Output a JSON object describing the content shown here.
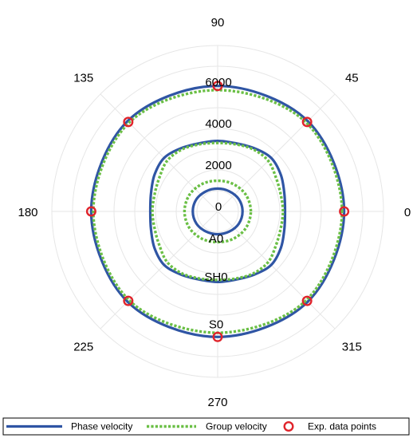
{
  "chart_data": {
    "type": "polar",
    "angle_ticks": [
      {
        "angle": 0,
        "label": "0"
      },
      {
        "angle": 45,
        "label": "45"
      },
      {
        "angle": 90,
        "label": "90"
      },
      {
        "angle": 135,
        "label": "135"
      },
      {
        "angle": 180,
        "label": "180"
      },
      {
        "angle": 225,
        "label": "225"
      },
      {
        "angle": 270,
        "label": "270"
      },
      {
        "angle": 315,
        "label": "315"
      }
    ],
    "radial_ticks": [
      {
        "value": 0,
        "label": "0"
      },
      {
        "value": 2000,
        "label": "2000"
      },
      {
        "value": 4000,
        "label": "4000"
      },
      {
        "value": 6000,
        "label": "6000"
      }
    ],
    "rlim": [
      0,
      8000
    ],
    "grid": true,
    "legend_position": "bottom",
    "mode_labels": [
      {
        "label": "A0",
        "angle": 270,
        "r": 1300
      },
      {
        "label": "SH0",
        "angle": 270,
        "r": 3150
      },
      {
        "label": "S0",
        "angle": 270,
        "r": 5450
      }
    ],
    "series": [
      {
        "name": "Phase velocity",
        "color": "#2f55a4",
        "style": "solid",
        "mode": "S0",
        "angles": [
          0,
          45,
          90,
          135,
          180,
          225,
          270,
          315
        ],
        "values": [
          6100,
          6150,
          6050,
          6150,
          6100,
          6150,
          6050,
          6150
        ]
      },
      {
        "name": "Group velocity",
        "color": "#6abf45",
        "style": "dotted",
        "mode": "S0",
        "angles": [
          0,
          45,
          90,
          135,
          180,
          225,
          270,
          315
        ],
        "values": [
          6000,
          6050,
          5850,
          6050,
          6000,
          6050,
          5850,
          6050
        ]
      },
      {
        "name": "Phase velocity",
        "color": "#2f55a4",
        "style": "solid",
        "mode": "SH0",
        "angles": [
          0,
          15,
          30,
          45,
          60,
          75,
          90,
          105,
          120,
          135,
          150,
          165,
          180,
          195,
          210,
          225,
          240,
          255,
          270,
          285,
          300,
          315,
          330,
          345
        ],
        "values": [
          3250,
          3330,
          3520,
          3650,
          3520,
          3400,
          3400,
          3400,
          3520,
          3650,
          3520,
          3330,
          3250,
          3330,
          3520,
          3650,
          3520,
          3400,
          3400,
          3400,
          3520,
          3650,
          3520,
          3330
        ]
      },
      {
        "name": "Group velocity",
        "color": "#6abf45",
        "style": "dotted",
        "mode": "SH0",
        "angles": [
          0,
          15,
          30,
          45,
          60,
          75,
          90,
          105,
          120,
          135,
          150,
          165,
          180,
          195,
          210,
          225,
          240,
          255,
          270,
          285,
          300,
          315,
          330,
          345
        ],
        "values": [
          3150,
          3150,
          3250,
          3450,
          3450,
          3350,
          3300,
          3350,
          3450,
          3450,
          3250,
          3150,
          3150,
          3150,
          3250,
          3450,
          3450,
          3350,
          3300,
          3350,
          3450,
          3450,
          3250,
          3150
        ]
      },
      {
        "name": "Phase velocity",
        "color": "#2f55a4",
        "style": "solid",
        "mode": "A0",
        "angles": [
          0,
          30,
          60,
          90,
          120,
          150,
          180,
          210,
          240,
          270,
          300,
          330
        ],
        "values": [
          1200,
          1180,
          1120,
          1100,
          1120,
          1180,
          1200,
          1180,
          1120,
          1100,
          1120,
          1180
        ]
      },
      {
        "name": "Group velocity",
        "color": "#6abf45",
        "style": "dotted",
        "mode": "A0",
        "angles": [
          0,
          30,
          60,
          90,
          120,
          150,
          180,
          210,
          240,
          270,
          300,
          330
        ],
        "values": [
          1600,
          1580,
          1520,
          1480,
          1520,
          1580,
          1600,
          1580,
          1520,
          1480,
          1520,
          1580
        ]
      },
      {
        "name": "Exp. data points",
        "color": "#e0242b",
        "style": "markers",
        "mode": "S0",
        "angles": [
          0,
          45,
          90,
          135,
          180,
          225,
          270,
          315
        ],
        "values": [
          6100,
          6100,
          6050,
          6100,
          6100,
          6100,
          6050,
          6100
        ]
      }
    ],
    "legend": [
      {
        "label": "Phase velocity",
        "color": "#2f55a4",
        "style": "solid"
      },
      {
        "label": "Group velocity",
        "color": "#6abf45",
        "style": "dotted"
      },
      {
        "label": "Exp. data points",
        "color": "#e0242b",
        "style": "marker"
      }
    ]
  }
}
